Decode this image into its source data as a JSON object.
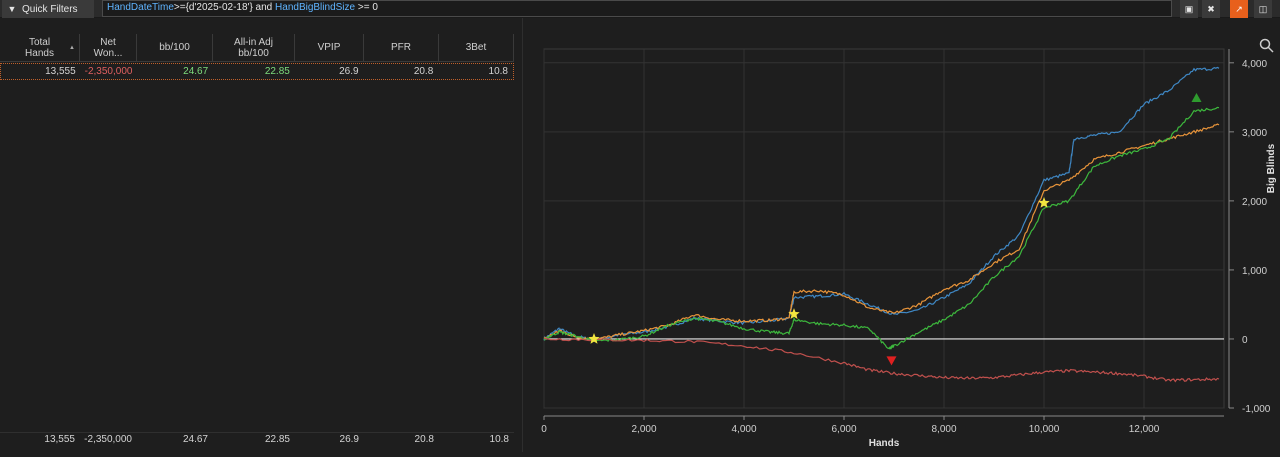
{
  "toolbar": {
    "quick_filters_label": "Quick Filters",
    "filter_parts": [
      {
        "text": "HandDateTime",
        "kind": "kw"
      },
      {
        "text": ">={d'2025-02-18'} and ",
        "kind": "op"
      },
      {
        "text": "HandBigBlindSize",
        "kind": "kw"
      },
      {
        "text": " >= 0",
        "kind": "op"
      }
    ],
    "icons": [
      "filter-icon",
      "save-icon",
      "clear-icon",
      "chart-icon",
      "layout-icon"
    ]
  },
  "grid": {
    "columns": [
      {
        "label": "Total\nHands",
        "sorted": true
      },
      {
        "label": "Net\nWon..."
      },
      {
        "label": "bb/100"
      },
      {
        "label": "All-in Adj\nbb/100"
      },
      {
        "label": "VPIP"
      },
      {
        "label": "PFR"
      },
      {
        "label": "3Bet"
      }
    ],
    "rows": [
      [
        "13,555",
        "-2,350,000",
        "24.67",
        "22.85",
        "26.9",
        "20.8",
        "10.8"
      ]
    ],
    "footer": [
      "13,555",
      "-2,350,000",
      "24.67",
      "22.85",
      "26.9",
      "20.8",
      "10.8"
    ]
  },
  "chart_data": {
    "type": "line",
    "xlabel": "Hands",
    "ylabel": "Big Blinds",
    "xlim": [
      0,
      13600
    ],
    "ylim": [
      -1000,
      4200
    ],
    "x_ticks": [
      "0",
      "2,000",
      "4,000",
      "6,000",
      "8,000",
      "10,000",
      "12,000"
    ],
    "x_tick_values": [
      0,
      2000,
      4000,
      6000,
      8000,
      10000,
      12000
    ],
    "y_ticks": [
      "-1,000",
      "0",
      "1,000",
      "2,000",
      "3,000",
      "4,000"
    ],
    "y_tick_values": [
      -1000,
      0,
      1000,
      2000,
      3000,
      4000
    ],
    "grid": true,
    "series": [
      {
        "color": "#3f88c5",
        "x": [
          0,
          300,
          600,
          1000,
          1500,
          2000,
          2500,
          3000,
          3500,
          4000,
          4500,
          4900,
          5000,
          5500,
          6000,
          6500,
          7000,
          7500,
          8000,
          8500,
          9000,
          9500,
          10000,
          10500,
          10600,
          11000,
          11500,
          12000,
          12500,
          13000,
          13500
        ],
        "y": [
          0,
          150,
          50,
          -20,
          60,
          100,
          180,
          300,
          260,
          230,
          260,
          300,
          600,
          620,
          650,
          500,
          350,
          420,
          600,
          800,
          1200,
          1500,
          2300,
          2400,
          2900,
          2950,
          3000,
          3400,
          3600,
          3900,
          3920
        ]
      },
      {
        "color": "#e8943a",
        "x": [
          0,
          300,
          600,
          1000,
          1500,
          2000,
          2500,
          3000,
          3500,
          4000,
          4500,
          4900,
          5000,
          5500,
          6000,
          6500,
          7000,
          7500,
          8000,
          8500,
          9000,
          9500,
          10000,
          10500,
          11000,
          11500,
          12000,
          12500,
          13000,
          13500
        ],
        "y": [
          0,
          120,
          40,
          -10,
          60,
          120,
          200,
          350,
          280,
          260,
          270,
          300,
          680,
          700,
          640,
          450,
          370,
          500,
          720,
          850,
          1100,
          1300,
          2150,
          2300,
          2600,
          2700,
          2800,
          2900,
          3000,
          3100
        ]
      },
      {
        "color": "#3db83d",
        "x": [
          0,
          300,
          600,
          1000,
          1500,
          2000,
          2500,
          3000,
          3500,
          4000,
          4500,
          4900,
          5000,
          5500,
          6000,
          6500,
          6900,
          7000,
          7500,
          8000,
          8500,
          9000,
          9500,
          10000,
          10500,
          11000,
          11500,
          12000,
          12500,
          13000,
          13500
        ],
        "y": [
          0,
          100,
          50,
          -30,
          -10,
          40,
          200,
          300,
          250,
          150,
          100,
          80,
          280,
          220,
          200,
          150,
          -150,
          -100,
          100,
          280,
          500,
          900,
          1200,
          1900,
          2000,
          2500,
          2650,
          2750,
          2900,
          3300,
          3350
        ]
      },
      {
        "color": "#c0504d",
        "x": [
          0,
          1000,
          2000,
          3000,
          4000,
          5000,
          6000,
          6500,
          7000,
          7500,
          8000,
          8500,
          9000,
          9500,
          10000,
          10500,
          11000,
          11500,
          12000,
          12500,
          13000,
          13500
        ],
        "y": [
          0,
          -10,
          -20,
          -40,
          -100,
          -200,
          -350,
          -450,
          -500,
          -530,
          -560,
          -570,
          -560,
          -520,
          -480,
          -460,
          -480,
          -500,
          -540,
          -600,
          -590,
          -580
        ]
      }
    ],
    "zero_line": true,
    "markers": [
      {
        "type": "star",
        "color": "#f2e640",
        "x": 1000,
        "y": 0
      },
      {
        "type": "star",
        "color": "#f2e640",
        "x": 5000,
        "y": 360
      },
      {
        "type": "star",
        "color": "#f2e640",
        "x": 10000,
        "y": 1970
      },
      {
        "type": "triangle-down",
        "color": "#e02020",
        "x": 6950,
        "y": -310
      },
      {
        "type": "triangle-up",
        "color": "#2e9b2e",
        "x": 13050,
        "y": 3490
      }
    ]
  }
}
